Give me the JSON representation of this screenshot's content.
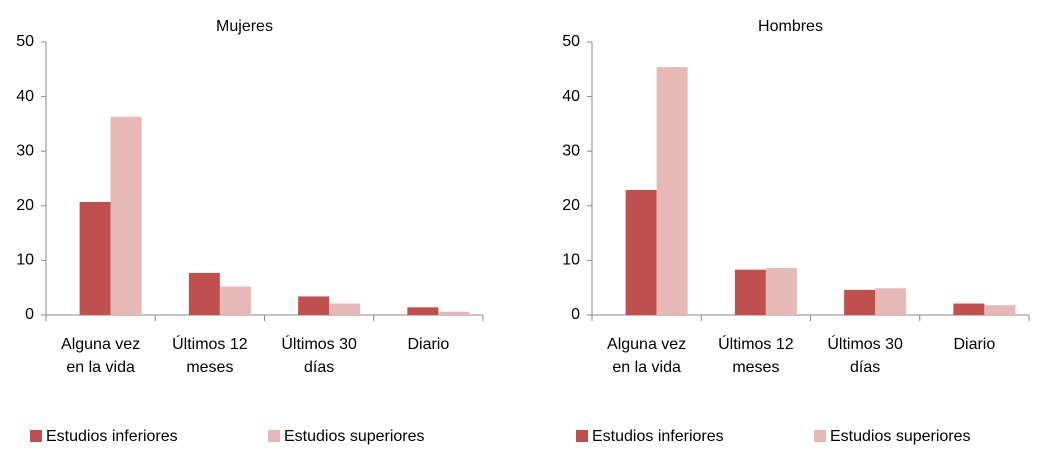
{
  "chart_data": [
    {
      "type": "bar",
      "title": "Mujeres",
      "categories": [
        "Alguna vez\nen la vida",
        "Últimos 12\nmeses",
        "Últimos 30\ndías",
        "Diario"
      ],
      "series": [
        {
          "name": "Estudios inferiores",
          "color": "#c0504d",
          "values": [
            20.7,
            7.7,
            3.4,
            1.4
          ]
        },
        {
          "name": "Estudios superiores",
          "color": "#e6b9b8",
          "values": [
            36.3,
            5.2,
            2.1,
            0.6
          ]
        }
      ],
      "ylim": [
        0,
        50
      ],
      "yticks": [
        0,
        10,
        20,
        30,
        40,
        50
      ],
      "legend": "bottom"
    },
    {
      "type": "bar",
      "title": "Hombres",
      "categories": [
        "Alguna vez\nen la vida",
        "Últimos 12\nmeses",
        "Últimos 30\ndías",
        "Diario"
      ],
      "series": [
        {
          "name": "Estudios inferiores",
          "color": "#c0504d",
          "values": [
            22.9,
            8.3,
            4.6,
            2.1
          ]
        },
        {
          "name": "Estudios superiores",
          "color": "#e6b9b8",
          "values": [
            45.4,
            8.6,
            4.9,
            1.8
          ]
        }
      ],
      "ylim": [
        0,
        50
      ],
      "yticks": [
        0,
        10,
        20,
        30,
        40,
        50
      ],
      "legend": "bottom"
    }
  ]
}
